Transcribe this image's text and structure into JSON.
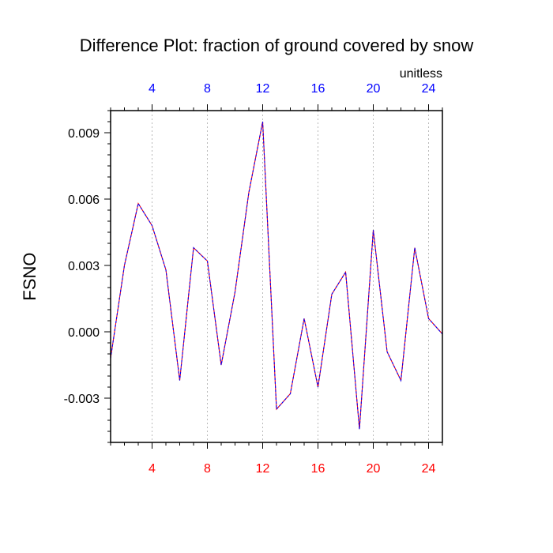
{
  "chart_data": {
    "type": "line",
    "title": "Difference Plot: fraction of ground covered by snow",
    "units_label": "unitless",
    "ylabel": "FSNO",
    "xlim": [
      1,
      25
    ],
    "ylim": [
      -0.005,
      0.01
    ],
    "x_ticks": [
      4,
      8,
      12,
      16,
      20,
      24
    ],
    "y_ticks": [
      {
        "value": 0.009,
        "label": "0.009"
      },
      {
        "value": 0.006,
        "label": "0.006"
      },
      {
        "value": 0.003,
        "label": "0.003"
      },
      {
        "value": 0.0,
        "label": "0.000"
      },
      {
        "value": -0.003,
        "label": "-0.003"
      }
    ],
    "colors": {
      "bottom_tick_labels": "#ff0000",
      "top_tick_labels": "#0000ff",
      "series_1": "#ff0000",
      "series_2": "#0000ff",
      "grid": "#aaaaaa"
    },
    "grid": "vertical dashed at major x ticks",
    "x": [
      1,
      2,
      3,
      4,
      5,
      6,
      7,
      8,
      9,
      10,
      11,
      12,
      13,
      14,
      15,
      16,
      17,
      18,
      19,
      20,
      21,
      22,
      23,
      24,
      25
    ],
    "series": [
      {
        "values": [
          -0.0012,
          0.003,
          0.0058,
          0.0048,
          0.0028,
          -0.0022,
          0.0038,
          0.0032,
          -0.0015,
          0.0018,
          0.0063,
          0.0095,
          -0.0035,
          -0.0028,
          0.0006,
          -0.0025,
          0.0017,
          0.0027,
          -0.0044,
          0.0046,
          -0.0009,
          -0.0022,
          0.0038,
          0.0006,
          -0.0001
        ]
      },
      {
        "values": [
          -0.0012,
          0.003,
          0.0058,
          0.0048,
          0.0028,
          -0.0022,
          0.0038,
          0.0032,
          -0.0015,
          0.0018,
          0.0063,
          0.0095,
          -0.0035,
          -0.0028,
          0.0006,
          -0.0025,
          0.0017,
          0.0027,
          -0.0044,
          0.0046,
          -0.0009,
          -0.0022,
          0.0038,
          0.0006,
          -0.0001
        ]
      }
    ]
  }
}
